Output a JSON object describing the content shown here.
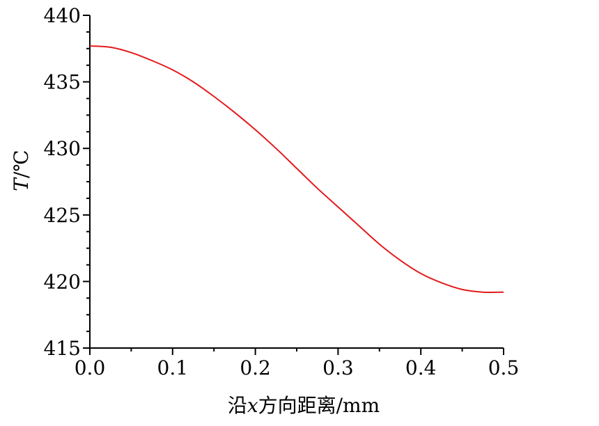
{
  "chart_data": {
    "type": "line",
    "title": "",
    "xlabel": "沿x方向距离/mm",
    "xlabel_parts": {
      "prefix": "沿",
      "var": "x",
      "suffix": "方向距离/mm"
    },
    "ylabel": "T/℃",
    "ylabel_parts": {
      "var": "T",
      "suffix": "/℃"
    },
    "xlim": [
      0,
      0.5
    ],
    "ylim": [
      415,
      440
    ],
    "xticks": [
      0.0,
      0.1,
      0.2,
      0.3,
      0.4,
      0.5
    ],
    "xtick_labels": [
      "0.0",
      "0.1",
      "0.2",
      "0.3",
      "0.4",
      "0.5"
    ],
    "yticks": [
      415,
      420,
      425,
      430,
      435,
      440
    ],
    "ytick_labels": [
      "415",
      "420",
      "425",
      "430",
      "435",
      "440"
    ],
    "grid": false,
    "legend": "none",
    "series": [
      {
        "color": "#e31a1c",
        "x": [
          0.0,
          0.025,
          0.05,
          0.075,
          0.1,
          0.125,
          0.15,
          0.175,
          0.2,
          0.225,
          0.25,
          0.275,
          0.3,
          0.325,
          0.35,
          0.375,
          0.4,
          0.425,
          0.45,
          0.475,
          0.5
        ],
        "y": [
          437.7,
          437.6,
          437.2,
          436.6,
          435.9,
          435.0,
          433.9,
          432.7,
          431.4,
          430.0,
          428.5,
          427.0,
          425.6,
          424.2,
          422.8,
          421.6,
          420.6,
          419.9,
          419.4,
          419.2,
          419.2
        ]
      }
    ]
  }
}
